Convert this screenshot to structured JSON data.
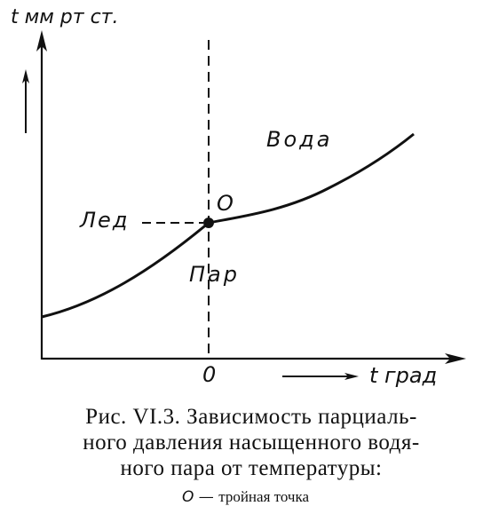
{
  "diagram": {
    "y_axis_label": "t мм рт ст.",
    "x_axis_label": "t град",
    "x_tick": "0",
    "triple_point_label": "O",
    "regions": {
      "water": "Вода",
      "ice": "Лед",
      "vapor": "Пар"
    },
    "colors": {
      "ink": "#111111",
      "background": "#ffffff"
    }
  },
  "caption": {
    "line1": "Рис. VI.3. Зависимость парциаль-",
    "line2": "ного давления насыщенного водя-",
    "line3": "ного пара от температуры:",
    "legend_symbol": "O",
    "legend_dash": "—",
    "legend_text": "тройная точка"
  }
}
